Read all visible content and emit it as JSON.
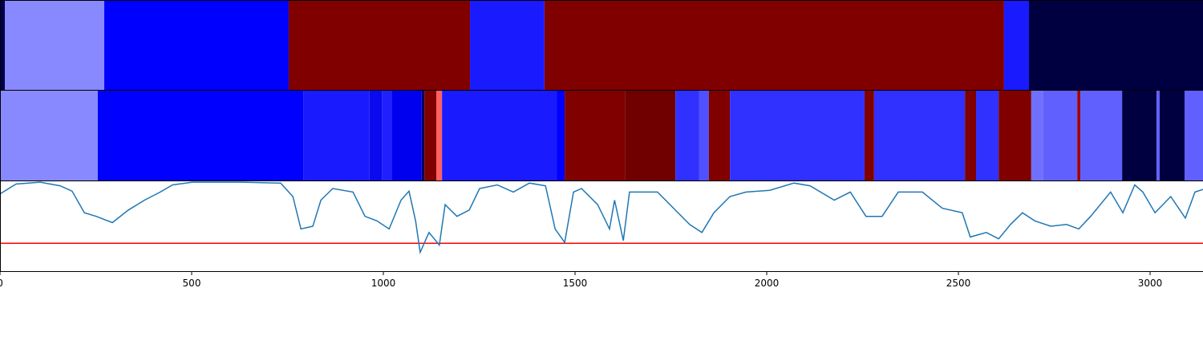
{
  "chart_data": [
    {
      "type": "segments",
      "xlim": [
        0,
        3138
      ],
      "x": [
        0,
        13,
        272,
        753,
        1226,
        1420,
        2619,
        2684,
        3138
      ],
      "colors": [
        "#000050",
        "#8888ff",
        "#0000ff",
        "#800000",
        "#1a1aff",
        "#800000",
        "#1a1aff",
        "#000040"
      ]
    },
    {
      "type": "segments",
      "xlim": [
        0,
        3138
      ],
      "x": [
        0,
        255,
        791,
        964,
        996,
        1023,
        1100,
        1107,
        1138,
        1153,
        1452,
        1473,
        1630,
        1762,
        1824,
        1849,
        1904,
        2255,
        2280,
        2517,
        2546,
        2605,
        2690,
        2720,
        2810,
        2818,
        2927,
        3017,
        3025,
        3090,
        3138
      ],
      "colors": [
        "#8888ff",
        "#0000ff",
        "#1a1aff",
        "#0a0aee",
        "#2020ff",
        "#0000ee",
        "#000060",
        "#800000",
        "#ff6060",
        "#1a1aff",
        "#0000ff",
        "#800000",
        "#700000",
        "#3030ff",
        "#5050ff",
        "#800000",
        "#3030ff",
        "#800000",
        "#3030ff",
        "#800000",
        "#3030ff",
        "#800000",
        "#7070ff",
        "#6060ff",
        "#a00000",
        "#6060ff",
        "#000040",
        "#6060ff",
        "#000040",
        "#6060ff"
      ]
    },
    {
      "type": "line",
      "xlim": [
        0,
        3138
      ],
      "ylim": [
        0,
        1
      ],
      "xticks": [
        0,
        500,
        1000,
        1500,
        2000,
        2500,
        3000
      ],
      "color": "#1f77b4",
      "x": [
        0,
        42,
        105,
        157,
        188,
        220,
        251,
        293,
        335,
        377,
        418,
        450,
        502,
        628,
        732,
        764,
        785,
        816,
        837,
        868,
        921,
        952,
        983,
        1015,
        1046,
        1067,
        1084,
        1096,
        1119,
        1146,
        1161,
        1192,
        1224,
        1251,
        1297,
        1339,
        1381,
        1423,
        1448,
        1473,
        1496,
        1517,
        1559,
        1590,
        1603,
        1626,
        1642,
        1674,
        1715,
        1757,
        1799,
        1831,
        1862,
        1904,
        1946,
        2008,
        2071,
        2113,
        2176,
        2218,
        2259,
        2301,
        2343,
        2406,
        2458,
        2510,
        2531,
        2573,
        2605,
        2636,
        2667,
        2699,
        2741,
        2782,
        2814,
        2845,
        2897,
        2929,
        2960,
        2981,
        3013,
        3054,
        3092,
        3117,
        3138
      ],
      "values": [
        0.86,
        0.97,
        0.99,
        0.95,
        0.89,
        0.65,
        0.61,
        0.54,
        0.68,
        0.79,
        0.88,
        0.96,
        0.99,
        0.99,
        0.98,
        0.83,
        0.47,
        0.5,
        0.79,
        0.92,
        0.88,
        0.61,
        0.56,
        0.47,
        0.79,
        0.89,
        0.56,
        0.21,
        0.43,
        0.29,
        0.74,
        0.61,
        0.68,
        0.92,
        0.96,
        0.88,
        0.98,
        0.95,
        0.47,
        0.32,
        0.88,
        0.92,
        0.74,
        0.47,
        0.79,
        0.34,
        0.88,
        0.88,
        0.88,
        0.7,
        0.52,
        0.43,
        0.65,
        0.83,
        0.88,
        0.9,
        0.98,
        0.95,
        0.79,
        0.88,
        0.61,
        0.61,
        0.88,
        0.88,
        0.7,
        0.65,
        0.38,
        0.43,
        0.36,
        0.52,
        0.65,
        0.56,
        0.5,
        0.52,
        0.47,
        0.61,
        0.88,
        0.65,
        0.96,
        0.88,
        0.65,
        0.83,
        0.59,
        0.88,
        0.91
      ],
      "hline": 0.31,
      "hline_color": "#ff0000"
    }
  ]
}
